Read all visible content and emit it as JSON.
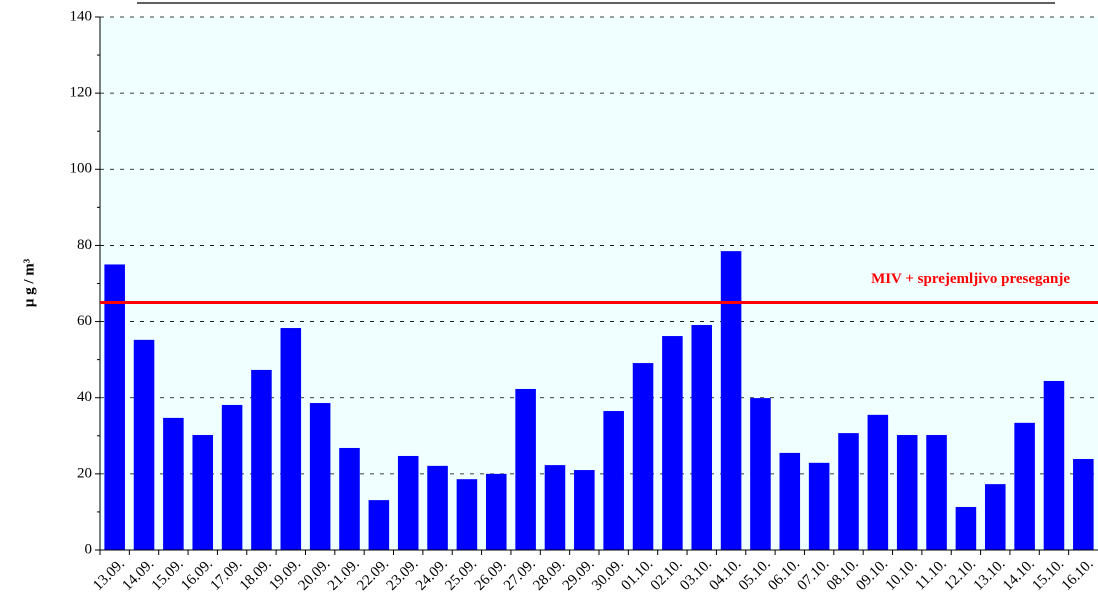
{
  "chart_data": {
    "type": "bar",
    "ylabel": "µ g / m³",
    "categories": [
      "13.09.",
      "14.09.",
      "15.09.",
      "16.09.",
      "17.09.",
      "18.09.",
      "19.09.",
      "20.09.",
      "21.09.",
      "22.09.",
      "23.09.",
      "24.09.",
      "25.09.",
      "26.09.",
      "27.09.",
      "28.09.",
      "29.09.",
      "30.09.",
      "01.10.",
      "02.10.",
      "03.10.",
      "04.10.",
      "05.10.",
      "06.10.",
      "07.10.",
      "08.10.",
      "09.10.",
      "10.10.",
      "11.10.",
      "12.10.",
      "13.10.",
      "14.10.",
      "15.10.",
      "16.10."
    ],
    "values": [
      75,
      55.2,
      34.7,
      30.2,
      38.1,
      47.3,
      58.3,
      38.6,
      26.8,
      13.1,
      24.7,
      22.1,
      18.6,
      20,
      42.3,
      22.3,
      21,
      36.5,
      49.1,
      56.2,
      59.1,
      78.5,
      39.9,
      25.5,
      22.9,
      30.7,
      35.5,
      30.2,
      30.2,
      11.3,
      17.3,
      33.4,
      44.4,
      23.9
    ],
    "color": "#0000ff",
    "ylim": [
      0,
      140
    ],
    "yticks": [
      0,
      20,
      40,
      60,
      80,
      100,
      120,
      140
    ],
    "grid": true,
    "threshold": {
      "value": 65,
      "label": "MIV + sprejemljivo preseganje",
      "color": "#ff0000"
    }
  }
}
